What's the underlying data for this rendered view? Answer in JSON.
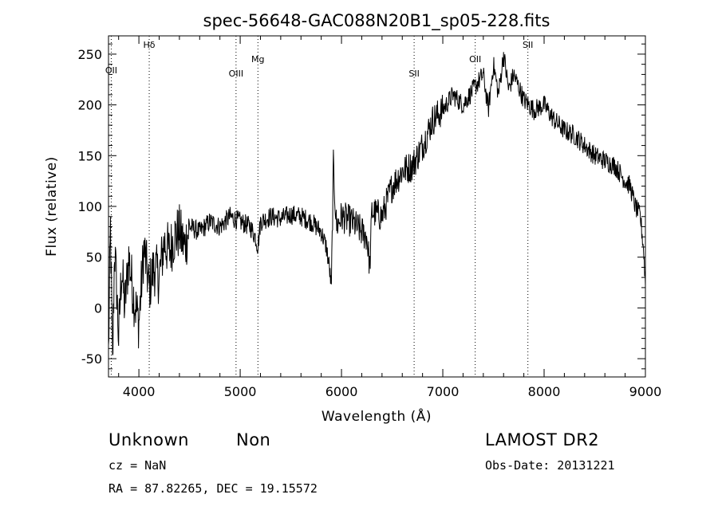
{
  "chart_data": {
    "type": "line",
    "title": "spec-56648-GAC088N20B1_sp05-228.fits",
    "xlabel": "Wavelength (Å)",
    "ylabel": "Flux (relative)",
    "xlim": [
      3700,
      9000
    ],
    "ylim": [
      -68,
      268
    ],
    "xticks": [
      4000,
      5000,
      6000,
      7000,
      8000,
      9000
    ],
    "yticks": [
      -50,
      0,
      50,
      100,
      150,
      200,
      250
    ],
    "grid": false,
    "lines": [
      {
        "label": "OII",
        "x": 3727
      },
      {
        "label": "Hδ",
        "x": 4102
      },
      {
        "label": "OIII",
        "x": 4959
      },
      {
        "label": "Mg",
        "x": 5175
      },
      {
        "label": "SII",
        "x": 6717
      },
      {
        "label": "OII",
        "x": 7320
      },
      {
        "label": "SII",
        "x": 7840
      }
    ],
    "series": [
      {
        "x": [
          3700,
          3720,
          3740,
          3760,
          3780,
          3800,
          3830,
          3860,
          3900,
          3950,
          4000,
          4050,
          4100,
          4150,
          4200,
          4250,
          4300,
          4350,
          4400,
          4450,
          4500,
          4600,
          4700,
          4800,
          4900,
          5000,
          5100,
          5150,
          5175,
          5200,
          5300,
          5400,
          5500,
          5600,
          5700,
          5750,
          5800,
          5850,
          5880,
          5900,
          5920,
          5950,
          6000,
          6100,
          6200,
          6250,
          6280,
          6300,
          6400,
          6500,
          6600,
          6700,
          6800,
          6900,
          7000,
          7100,
          7200,
          7300,
          7400,
          7450,
          7500,
          7550,
          7600,
          7650,
          7700,
          7800,
          7900,
          8000,
          8100,
          8200,
          8300,
          8400,
          8500,
          8600,
          8700,
          8800,
          8850,
          8900,
          8950,
          8980,
          9000
        ],
        "y": [
          -45,
          80,
          -60,
          60,
          20,
          -30,
          40,
          0,
          50,
          10,
          -15,
          60,
          20,
          40,
          30,
          65,
          55,
          70,
          75,
          60,
          80,
          75,
          85,
          80,
          90,
          85,
          80,
          70,
          60,
          85,
          90,
          88,
          92,
          90,
          85,
          80,
          75,
          60,
          40,
          20,
          140,
          80,
          90,
          85,
          75,
          70,
          40,
          95,
          90,
          120,
          135,
          140,
          160,
          185,
          195,
          210,
          200,
          215,
          230,
          195,
          240,
          210,
          250,
          215,
          230,
          205,
          195,
          200,
          185,
          175,
          170,
          160,
          150,
          145,
          140,
          125,
          120,
          100,
          90,
          60,
          25
        ]
      }
    ]
  },
  "info": {
    "class": "Unknown",
    "subclass": "Non",
    "survey": "LAMOST DR2",
    "cz": "cz = NaN",
    "obs_date": "Obs-Date: 20131221",
    "coords": "RA =  87.82265, DEC =  19.15572"
  }
}
